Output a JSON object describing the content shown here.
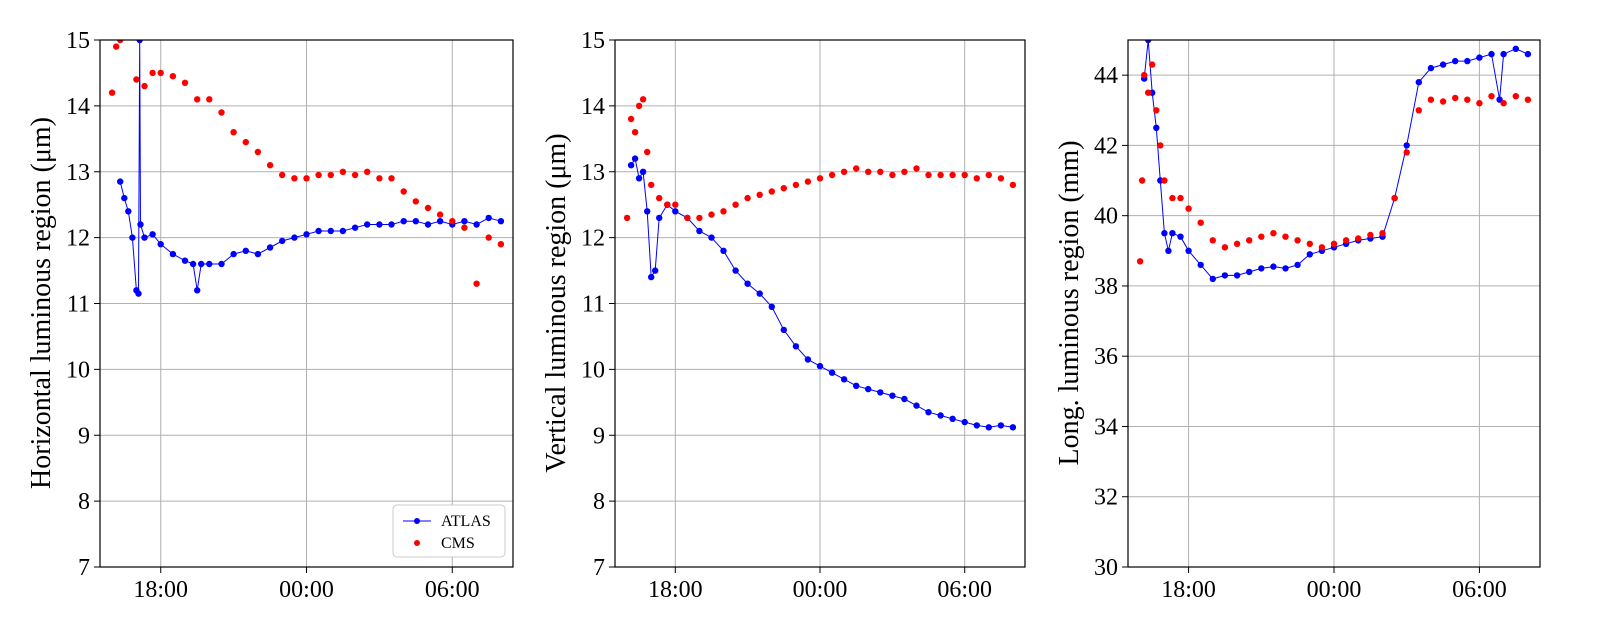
{
  "chart_data": [
    {
      "type": "scatter",
      "ylabel": "Horizontal luminous region (μm)",
      "xlabel": "",
      "xlim": [
        "15:30",
        "08:30"
      ],
      "ylim": [
        7,
        15
      ],
      "xticks": [
        "18:00",
        "00:00",
        "06:00"
      ],
      "yticks": [
        7,
        8,
        9,
        10,
        11,
        12,
        13,
        14,
        15
      ],
      "grid": true,
      "legend": "lower-right",
      "series": [
        {
          "name": "ATLAS",
          "color": "#0000ff",
          "style": "line-with-markers",
          "points": [
            [
              "16:20",
              12.85
            ],
            [
              "16:30",
              12.6
            ],
            [
              "16:40",
              12.4
            ],
            [
              "16:50",
              12.0
            ],
            [
              "17:00",
              11.2
            ],
            [
              "17:05",
              11.15
            ],
            [
              "17:08",
              15.0
            ],
            [
              "17:10",
              12.2
            ],
            [
              "17:20",
              12.0
            ],
            [
              "17:40",
              12.05
            ],
            [
              "18:00",
              11.9
            ],
            [
              "18:30",
              11.75
            ],
            [
              "19:00",
              11.65
            ],
            [
              "19:20",
              11.6
            ],
            [
              "19:30",
              11.2
            ],
            [
              "19:40",
              11.6
            ],
            [
              "20:00",
              11.6
            ],
            [
              "20:30",
              11.6
            ],
            [
              "21:00",
              11.75
            ],
            [
              "21:30",
              11.8
            ],
            [
              "22:00",
              11.75
            ],
            [
              "22:30",
              11.85
            ],
            [
              "23:00",
              11.95
            ],
            [
              "23:30",
              12.0
            ],
            [
              "00:00",
              12.05
            ],
            [
              "00:30",
              12.1
            ],
            [
              "01:00",
              12.1
            ],
            [
              "01:30",
              12.1
            ],
            [
              "02:00",
              12.15
            ],
            [
              "02:30",
              12.2
            ],
            [
              "03:00",
              12.2
            ],
            [
              "03:30",
              12.2
            ],
            [
              "04:00",
              12.25
            ],
            [
              "04:30",
              12.25
            ],
            [
              "05:00",
              12.2
            ],
            [
              "05:30",
              12.25
            ],
            [
              "06:00",
              12.2
            ],
            [
              "06:30",
              12.25
            ],
            [
              "07:00",
              12.2
            ],
            [
              "07:30",
              12.3
            ],
            [
              "08:00",
              12.25
            ]
          ]
        },
        {
          "name": "CMS",
          "color": "#ff0000",
          "style": "markers",
          "points": [
            [
              "16:00",
              14.2
            ],
            [
              "16:10",
              14.9
            ],
            [
              "16:20",
              15.0
            ],
            [
              "17:00",
              14.4
            ],
            [
              "17:20",
              14.3
            ],
            [
              "17:40",
              14.5
            ],
            [
              "18:00",
              14.5
            ],
            [
              "18:30",
              14.45
            ],
            [
              "19:00",
              14.35
            ],
            [
              "19:30",
              14.1
            ],
            [
              "20:00",
              14.1
            ],
            [
              "20:30",
              13.9
            ],
            [
              "21:00",
              13.6
            ],
            [
              "21:30",
              13.45
            ],
            [
              "22:00",
              13.3
            ],
            [
              "22:30",
              13.1
            ],
            [
              "23:00",
              12.95
            ],
            [
              "23:30",
              12.9
            ],
            [
              "00:00",
              12.9
            ],
            [
              "00:30",
              12.95
            ],
            [
              "01:00",
              12.95
            ],
            [
              "01:30",
              13.0
            ],
            [
              "02:00",
              12.95
            ],
            [
              "02:30",
              13.0
            ],
            [
              "03:00",
              12.9
            ],
            [
              "03:30",
              12.9
            ],
            [
              "04:00",
              12.7
            ],
            [
              "04:30",
              12.55
            ],
            [
              "05:00",
              12.45
            ],
            [
              "05:30",
              12.35
            ],
            [
              "06:00",
              12.25
            ],
            [
              "06:30",
              12.15
            ],
            [
              "07:00",
              11.3
            ],
            [
              "07:30",
              12.0
            ],
            [
              "08:00",
              11.9
            ]
          ]
        }
      ]
    },
    {
      "type": "scatter",
      "ylabel": "Vertical luminous region (μm)",
      "xlabel": "",
      "xlim": [
        "15:30",
        "08:30"
      ],
      "ylim": [
        7,
        15
      ],
      "xticks": [
        "18:00",
        "00:00",
        "06:00"
      ],
      "yticks": [
        7,
        8,
        9,
        10,
        11,
        12,
        13,
        14,
        15
      ],
      "grid": true,
      "series": [
        {
          "name": "ATLAS",
          "color": "#0000ff",
          "style": "line-with-markers",
          "points": [
            [
              "16:10",
              13.1
            ],
            [
              "16:20",
              13.2
            ],
            [
              "16:30",
              12.9
            ],
            [
              "16:40",
              13.0
            ],
            [
              "16:50",
              12.4
            ],
            [
              "17:00",
              11.4
            ],
            [
              "17:10",
              11.5
            ],
            [
              "17:20",
              12.3
            ],
            [
              "17:40",
              12.5
            ],
            [
              "18:00",
              12.4
            ],
            [
              "18:30",
              12.3
            ],
            [
              "19:00",
              12.1
            ],
            [
              "19:30",
              12.0
            ],
            [
              "20:00",
              11.8
            ],
            [
              "20:30",
              11.5
            ],
            [
              "21:00",
              11.3
            ],
            [
              "21:30",
              11.15
            ],
            [
              "22:00",
              10.95
            ],
            [
              "22:30",
              10.6
            ],
            [
              "23:00",
              10.35
            ],
            [
              "23:30",
              10.15
            ],
            [
              "00:00",
              10.05
            ],
            [
              "00:30",
              9.95
            ],
            [
              "01:00",
              9.85
            ],
            [
              "01:30",
              9.75
            ],
            [
              "02:00",
              9.7
            ],
            [
              "02:30",
              9.65
            ],
            [
              "03:00",
              9.6
            ],
            [
              "03:30",
              9.55
            ],
            [
              "04:00",
              9.45
            ],
            [
              "04:30",
              9.35
            ],
            [
              "05:00",
              9.3
            ],
            [
              "05:30",
              9.25
            ],
            [
              "06:00",
              9.2
            ],
            [
              "06:30",
              9.15
            ],
            [
              "07:00",
              9.12
            ],
            [
              "07:30",
              9.15
            ],
            [
              "08:00",
              9.12
            ]
          ]
        },
        {
          "name": "CMS",
          "color": "#ff0000",
          "style": "markers",
          "points": [
            [
              "16:00",
              12.3
            ],
            [
              "16:10",
              13.8
            ],
            [
              "16:20",
              13.6
            ],
            [
              "16:30",
              14.0
            ],
            [
              "16:40",
              14.1
            ],
            [
              "16:50",
              13.3
            ],
            [
              "17:00",
              12.8
            ],
            [
              "17:20",
              12.6
            ],
            [
              "17:40",
              12.5
            ],
            [
              "18:00",
              12.5
            ],
            [
              "18:30",
              12.3
            ],
            [
              "19:00",
              12.3
            ],
            [
              "19:30",
              12.35
            ],
            [
              "20:00",
              12.4
            ],
            [
              "20:30",
              12.5
            ],
            [
              "21:00",
              12.6
            ],
            [
              "21:30",
              12.65
            ],
            [
              "22:00",
              12.7
            ],
            [
              "22:30",
              12.75
            ],
            [
              "23:00",
              12.8
            ],
            [
              "23:30",
              12.85
            ],
            [
              "00:00",
              12.9
            ],
            [
              "00:30",
              12.95
            ],
            [
              "01:00",
              13.0
            ],
            [
              "01:30",
              13.05
            ],
            [
              "02:00",
              13.0
            ],
            [
              "02:30",
              13.0
            ],
            [
              "03:00",
              12.95
            ],
            [
              "03:30",
              13.0
            ],
            [
              "04:00",
              13.05
            ],
            [
              "04:30",
              12.95
            ],
            [
              "05:00",
              12.95
            ],
            [
              "05:30",
              12.95
            ],
            [
              "06:00",
              12.95
            ],
            [
              "06:30",
              12.9
            ],
            [
              "07:00",
              12.95
            ],
            [
              "07:30",
              12.9
            ],
            [
              "08:00",
              12.8
            ]
          ]
        }
      ]
    },
    {
      "type": "scatter",
      "ylabel": "Long. luminous region (mm)",
      "xlabel": "",
      "xlim": [
        "15:30",
        "08:30"
      ],
      "ylim": [
        30,
        45
      ],
      "xticks": [
        "18:00",
        "00:00",
        "06:00"
      ],
      "yticks": [
        30,
        32,
        34,
        36,
        38,
        40,
        42,
        44
      ],
      "grid": true,
      "series": [
        {
          "name": "ATLAS",
          "color": "#0000ff",
          "style": "line-with-markers",
          "points": [
            [
              "16:10",
              43.9
            ],
            [
              "16:20",
              45.0
            ],
            [
              "16:30",
              43.5
            ],
            [
              "16:40",
              42.5
            ],
            [
              "16:50",
              41.0
            ],
            [
              "17:00",
              39.5
            ],
            [
              "17:10",
              39.0
            ],
            [
              "17:20",
              39.5
            ],
            [
              "17:40",
              39.4
            ],
            [
              "18:00",
              39.0
            ],
            [
              "18:30",
              38.6
            ],
            [
              "19:00",
              38.2
            ],
            [
              "19:30",
              38.3
            ],
            [
              "20:00",
              38.3
            ],
            [
              "20:30",
              38.4
            ],
            [
              "21:00",
              38.5
            ],
            [
              "21:30",
              38.55
            ],
            [
              "22:00",
              38.5
            ],
            [
              "22:30",
              38.6
            ],
            [
              "23:00",
              38.9
            ],
            [
              "23:30",
              39.0
            ],
            [
              "00:00",
              39.1
            ],
            [
              "00:30",
              39.2
            ],
            [
              "01:00",
              39.3
            ],
            [
              "01:30",
              39.35
            ],
            [
              "02:00",
              39.4
            ],
            [
              "02:30",
              40.5
            ],
            [
              "03:00",
              42.0
            ],
            [
              "03:30",
              43.8
            ],
            [
              "04:00",
              44.2
            ],
            [
              "04:30",
              44.3
            ],
            [
              "05:00",
              44.4
            ],
            [
              "05:30",
              44.4
            ],
            [
              "06:00",
              44.5
            ],
            [
              "06:30",
              44.6
            ],
            [
              "06:50",
              43.3
            ],
            [
              "07:00",
              44.6
            ],
            [
              "07:30",
              44.75
            ],
            [
              "08:00",
              44.6
            ]
          ]
        },
        {
          "name": "CMS",
          "color": "#ff0000",
          "style": "markers",
          "points": [
            [
              "16:00",
              38.7
            ],
            [
              "16:05",
              41.0
            ],
            [
              "16:10",
              44.0
            ],
            [
              "16:20",
              43.5
            ],
            [
              "16:30",
              44.3
            ],
            [
              "16:40",
              43.0
            ],
            [
              "16:50",
              42.0
            ],
            [
              "17:00",
              41.0
            ],
            [
              "17:20",
              40.5
            ],
            [
              "17:40",
              40.5
            ],
            [
              "18:00",
              40.2
            ],
            [
              "18:30",
              39.8
            ],
            [
              "19:00",
              39.3
            ],
            [
              "19:30",
              39.1
            ],
            [
              "20:00",
              39.2
            ],
            [
              "20:30",
              39.3
            ],
            [
              "21:00",
              39.4
            ],
            [
              "21:30",
              39.5
            ],
            [
              "22:00",
              39.4
            ],
            [
              "22:30",
              39.3
            ],
            [
              "23:00",
              39.2
            ],
            [
              "23:30",
              39.1
            ],
            [
              "00:00",
              39.2
            ],
            [
              "00:30",
              39.3
            ],
            [
              "01:00",
              39.35
            ],
            [
              "01:30",
              39.45
            ],
            [
              "02:00",
              39.5
            ],
            [
              "02:30",
              40.5
            ],
            [
              "03:00",
              41.8
            ],
            [
              "03:30",
              43.0
            ],
            [
              "04:00",
              43.3
            ],
            [
              "04:30",
              43.25
            ],
            [
              "05:00",
              43.35
            ],
            [
              "05:30",
              43.3
            ],
            [
              "06:00",
              43.2
            ],
            [
              "06:30",
              43.4
            ],
            [
              "07:00",
              43.2
            ],
            [
              "07:30",
              43.4
            ],
            [
              "08:00",
              43.3
            ]
          ]
        }
      ]
    }
  ]
}
